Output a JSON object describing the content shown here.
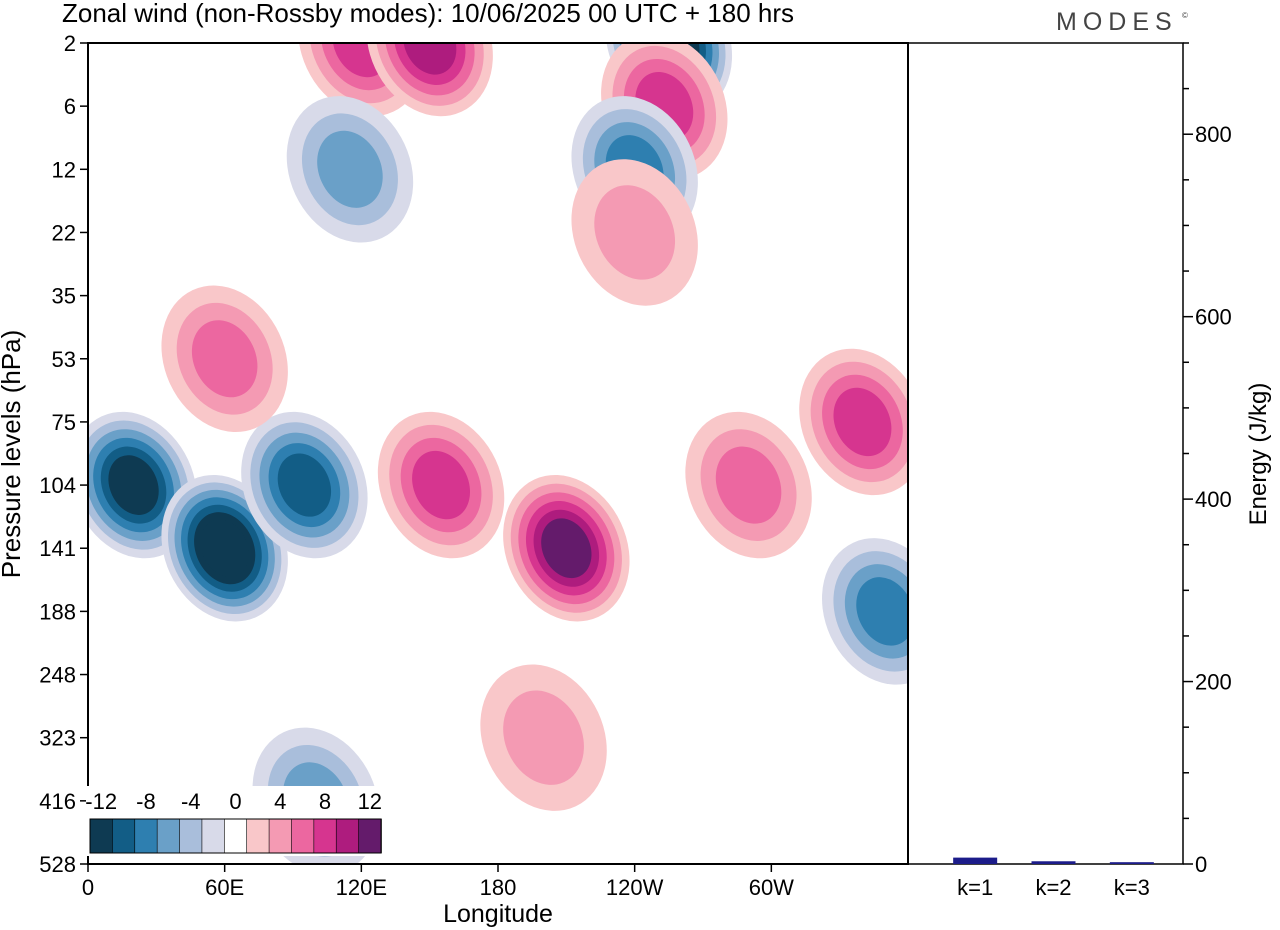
{
  "header": {
    "title": "Zonal wind (non-Rossby modes):  10/06/2025  00 UTC  + 180 hrs",
    "brand": "MODES",
    "brand_mark": "©"
  },
  "chart_data": [
    {
      "type": "heatmap",
      "title": "Zonal wind (non-Rossby modes):  10/06/2025  00 UTC  + 180 hrs",
      "xlabel": "Longitude",
      "ylabel": "Pressure levels (hPa)",
      "x_tick_labels": [
        "0",
        "60E",
        "120E",
        "180",
        "120W",
        "60W"
      ],
      "x_ticks_deg": [
        0,
        60,
        120,
        180,
        240,
        300
      ],
      "xlim_deg": [
        0,
        360
      ],
      "y_tick_labels": [
        "2",
        "6",
        "12",
        "22",
        "35",
        "53",
        "75",
        "104",
        "141",
        "188",
        "248",
        "323",
        "416",
        "528"
      ],
      "yaxis": "pressure levels, top 2 hPa to bottom 528 hPa, one row per level",
      "colorbar": {
        "tick_labels": [
          "-12",
          "-8",
          "-4",
          "0",
          "4",
          "8",
          "12"
        ],
        "levels": [
          -14,
          -12,
          -10,
          -8,
          -6,
          -4,
          -2,
          2,
          4,
          6,
          8,
          10,
          12,
          14
        ],
        "colors": [
          "#0e3a52",
          "#125d86",
          "#2e7fb0",
          "#6aa0c8",
          "#a9bedb",
          "#d8dae9",
          "#ffffff",
          "#f9c7c9",
          "#f49ab3",
          "#ec67a0",
          "#d6358f",
          "#ae1c7e",
          "#641b6b"
        ]
      },
      "features": [
        {
          "lon": 120,
          "level": "2",
          "value": 8
        },
        {
          "lon": 150,
          "level": "2",
          "value": 10
        },
        {
          "lon": 255,
          "level": "2",
          "value": -14
        },
        {
          "lon": 253,
          "level": "6",
          "value": 8
        },
        {
          "lon": 240,
          "level": "12",
          "value": -8
        },
        {
          "lon": 115,
          "level": "12",
          "value": -6
        },
        {
          "lon": 20,
          "level": "104",
          "value": -13
        },
        {
          "lon": 60,
          "level": "141",
          "value": -14
        },
        {
          "lon": 95,
          "level": "104",
          "value": -10
        },
        {
          "lon": 210,
          "level": "141",
          "value": 12
        },
        {
          "lon": 155,
          "level": "104",
          "value": 8
        },
        {
          "lon": 290,
          "level": "104",
          "value": 6
        },
        {
          "lon": 350,
          "level": "188",
          "value": -8
        },
        {
          "lon": 340,
          "level": "75",
          "value": 8
        },
        {
          "lon": 60,
          "level": "53",
          "value": 6
        },
        {
          "lon": 240,
          "level": "22",
          "value": 4
        },
        {
          "lon": 200,
          "level": "323",
          "value": 4
        },
        {
          "lon": 100,
          "level": "416",
          "value": -6
        }
      ]
    },
    {
      "type": "bar",
      "ylabel": "Energy (J/kg)",
      "categories": [
        "k=1",
        "k=2",
        "k=3"
      ],
      "values": [
        7,
        3,
        2
      ],
      "ylim": [
        0,
        900
      ],
      "y_tick_labels": [
        "0",
        "200",
        "400",
        "600",
        "800"
      ],
      "bar_color": "#1c1c8a"
    }
  ]
}
